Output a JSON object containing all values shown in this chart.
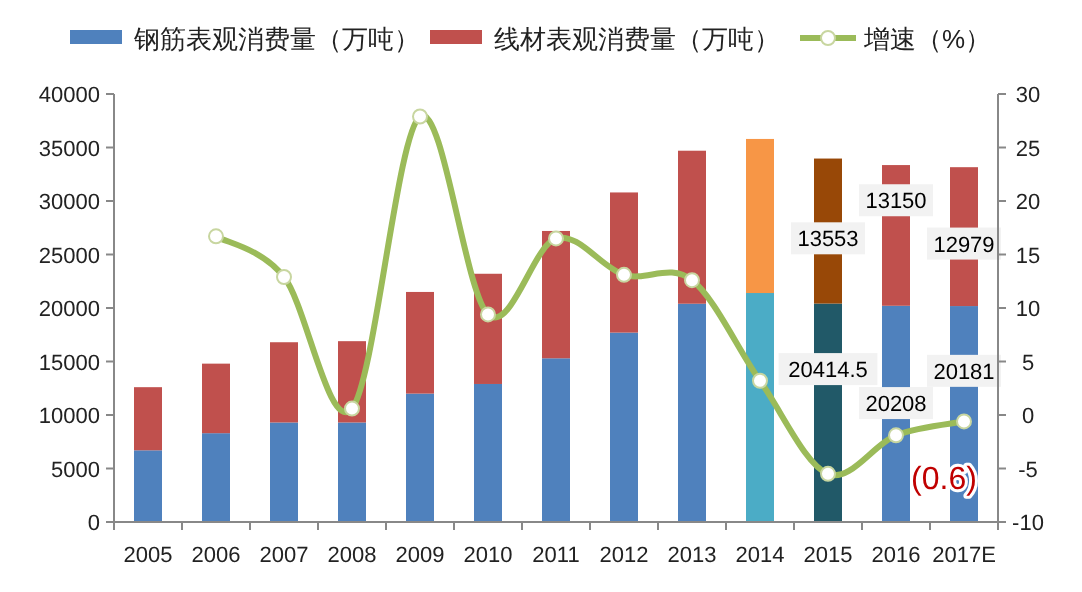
{
  "chart_data": {
    "type": "bar",
    "stacked": true,
    "categories": [
      "2005",
      "2006",
      "2007",
      "2008",
      "2009",
      "2010",
      "2011",
      "2012",
      "2013",
      "2014",
      "2015",
      "2016",
      "2017E"
    ],
    "series": [
      {
        "name": "钢筋表观消费量（万吨）",
        "color": "#4f81bd",
        "colors": [
          "#4f81bd",
          "#4f81bd",
          "#4f81bd",
          "#4f81bd",
          "#4f81bd",
          "#4f81bd",
          "#4f81bd",
          "#4f81bd",
          "#4f81bd",
          "#4bacc6",
          "#215968",
          "#4f81bd",
          "#4f81bd"
        ],
        "values": [
          6700,
          8300,
          9300,
          9300,
          12000,
          12900,
          15300,
          17700,
          20400,
          21400,
          20414.5,
          20208,
          20181
        ],
        "value_labels": [
          null,
          null,
          null,
          null,
          null,
          null,
          null,
          null,
          null,
          null,
          "20414.5",
          "20208",
          "20181"
        ]
      },
      {
        "name": "线材表观消费量（万吨）",
        "color": "#c0504d",
        "colors": [
          "#c0504d",
          "#c0504d",
          "#c0504d",
          "#c0504d",
          "#c0504d",
          "#c0504d",
          "#c0504d",
          "#c0504d",
          "#c0504d",
          "#f79646",
          "#984807",
          "#c0504d",
          "#c0504d"
        ],
        "values": [
          5900,
          6500,
          7500,
          7600,
          9500,
          10300,
          11900,
          13100,
          14300,
          14400,
          13553,
          13150,
          12979
        ],
        "value_labels": [
          null,
          null,
          null,
          null,
          null,
          null,
          null,
          null,
          null,
          null,
          "13553",
          "13150",
          "12979"
        ]
      },
      {
        "name": "增速（%）",
        "type": "line",
        "axis": "y2",
        "color": "#9bbb59",
        "marker": "circle",
        "values": [
          null,
          16.7,
          12.9,
          0.6,
          27.9,
          9.4,
          16.5,
          13.1,
          12.6,
          3.2,
          -5.5,
          -1.9,
          -0.6
        ]
      }
    ],
    "ylim": [
      0,
      40000
    ],
    "yticks": [
      0,
      5000,
      10000,
      15000,
      20000,
      25000,
      30000,
      35000,
      40000
    ],
    "y2lim": [
      -10,
      30
    ],
    "y2ticks": [
      -10,
      -5,
      0,
      5,
      10,
      15,
      20,
      25,
      30
    ],
    "legend": "top",
    "grid": false,
    "annotations": [
      {
        "text": "(0.6)",
        "x": "2017E",
        "y": -0.6
      }
    ]
  }
}
